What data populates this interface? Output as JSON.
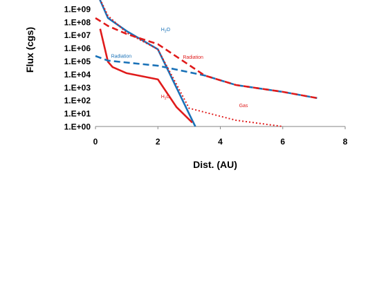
{
  "chart_data": {
    "type": "line",
    "xlabel": "Dist. (AU)",
    "ylabel": "Flux (cgs)",
    "xlim": [
      0,
      8
    ],
    "xticks": [
      "0",
      "2",
      "4",
      "6",
      "8"
    ],
    "ylim_log10": [
      0,
      9
    ],
    "yticks": [
      "1.E+00",
      "1.E+01",
      "1.E+02",
      "1.E+03",
      "1.E+04",
      "1.E+05",
      "1.E+06",
      "1.E+07",
      "1.E+08",
      "1.E+09"
    ],
    "colors": {
      "blue": "#1a72b8",
      "red": "#e01b1b"
    },
    "series": [
      {
        "color": "blue",
        "style": "solid",
        "x": [
          0,
          0.4,
          1.0,
          2.0,
          3.1,
          3.2
        ],
        "y": [
          30000000000.0,
          200000000.0,
          20000000.0,
          800000.0,
          3.0,
          1.0
        ]
      },
      {
        "color": "red",
        "style": "solid",
        "x": [
          0.15,
          0.4,
          0.55,
          1.0,
          2.0,
          2.6,
          3.1
        ],
        "y": [
          30000000.0,
          90000.0,
          35000.0,
          12000.0,
          4000.0,
          30.0,
          2.0
        ]
      },
      {
        "color": "blue",
        "style": "dashed",
        "x": [
          0,
          0.4,
          2.0,
          3.5,
          4.5,
          6.0,
          7.1
        ],
        "y": [
          250000.0,
          110000.0,
          45000.0,
          8000.0,
          1500.0,
          450.0,
          150.0
        ]
      },
      {
        "color": "red",
        "style": "dashed",
        "x": [
          0,
          0.4,
          1.0,
          2.0,
          3.5,
          4.5,
          6.0,
          7.1
        ],
        "y": [
          200000000.0,
          50000000.0,
          12000000.0,
          2000000.0,
          8000.0,
          1500.0,
          450.0,
          150.0
        ]
      },
      {
        "color": "red",
        "style": "dotted",
        "x": [
          0,
          0.4,
          1.0,
          2.0,
          3.0,
          4.5,
          6.0
        ],
        "y": [
          30000000000.0,
          300000000.0,
          15000000.0,
          800000.0,
          25.0,
          3.0,
          1.0
        ]
      }
    ],
    "annotations": [
      {
        "text": "H2O",
        "color": "blue",
        "x": 2.1,
        "y": 20000000.0
      },
      {
        "text": "Radiation",
        "color": "blue",
        "x": 0.5,
        "y": 180000.0
      },
      {
        "text": "Radiation",
        "color": "red",
        "x": 2.8,
        "y": 150000.0
      },
      {
        "text": "H2O",
        "color": "red",
        "x": 2.1,
        "y": 150.0
      },
      {
        "text": "Gas",
        "color": "red",
        "x": 4.6,
        "y": 30.0
      }
    ]
  }
}
